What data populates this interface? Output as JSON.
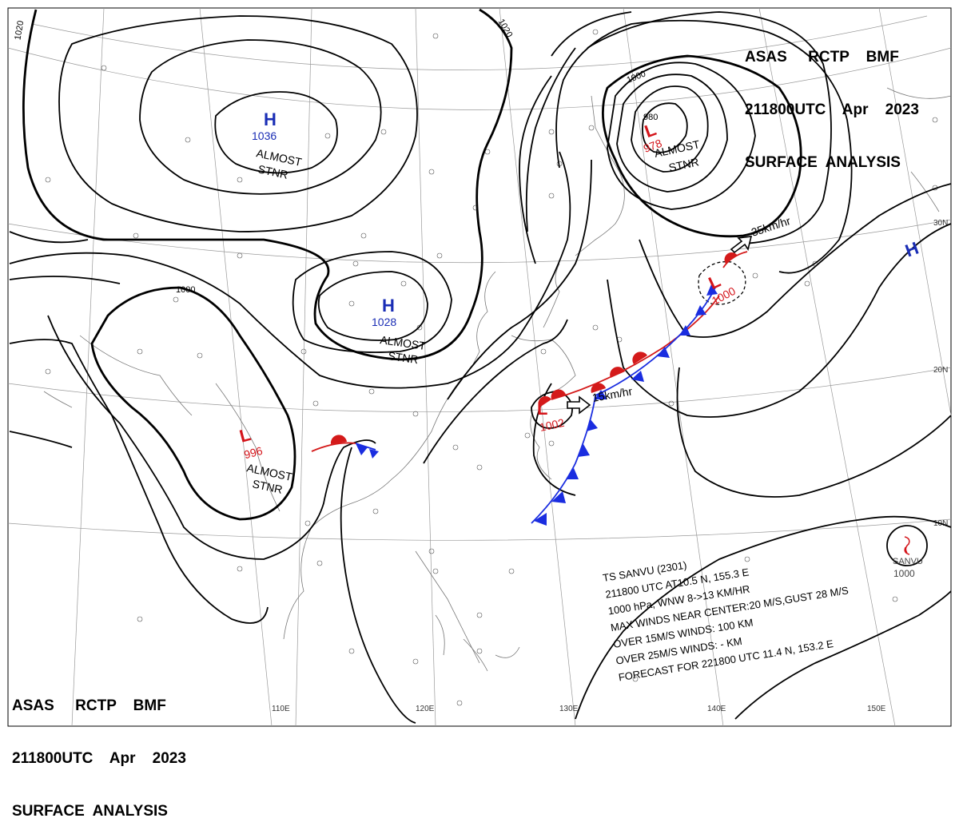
{
  "header_top": {
    "line1": "ASAS     RCTP    BMF",
    "line2": "211800UTC    Apr    2023",
    "line3": "SURFACE  ANALYSIS"
  },
  "header_bottom": {
    "line1": "ASAS     RCTP    BMF",
    "line2": "211800UTC    Apr    2023",
    "line3": "SURFACE  ANALYSIS"
  },
  "grid_labels": {
    "lon110": "110E",
    "lon120": "120E",
    "lon130": "130E",
    "lon140": "140E",
    "lon150": "150E",
    "lat30": "30N",
    "lat20": "20N",
    "lat10": "10N"
  },
  "isobar_labels": {
    "a": "1020",
    "b": "1020",
    "c": "1000",
    "d": "1000",
    "e": "980"
  },
  "systems": {
    "h1": {
      "letter": "H",
      "pressure": "1036",
      "note1": "ALMOST",
      "note2": "STNR",
      "color": "#1a2db5"
    },
    "h2": {
      "letter": "H",
      "pressure": "1028",
      "note1": "ALMOST",
      "note2": "STNR",
      "color": "#1a2db5"
    },
    "h3": {
      "letter": "H",
      "color": "#1a2db5"
    },
    "l1": {
      "letter": "L",
      "pressure": "978",
      "note1": "ALMOST",
      "note2": "STNR",
      "color": "#d4141a"
    },
    "l2": {
      "letter": "L",
      "pressure": "1000",
      "color": "#d4141a"
    },
    "l3": {
      "letter": "L",
      "pressure": "1002",
      "color": "#d4141a"
    },
    "l4": {
      "letter": "L",
      "pressure": "996",
      "note1": "ALMOST",
      "note2": "STNR",
      "color": "#d4141a"
    }
  },
  "motion": {
    "l2_speed": "35km/hr",
    "l3_speed": "15km/hr"
  },
  "typhoon": {
    "symbol_name": "SANVU",
    "symbol_pressure": "1000",
    "line1": "TS  SANVU  (2301)",
    "line2": "211800 UTC  AT10.5 N, 155.3 E",
    "line3": "1000 hPa, WNW  8->13 KM/HR",
    "line4": "MAX WINDS NEAR CENTER:20 M/S,GUST 28 M/S",
    "line5": "OVER 15M/S WINDS: 100 KM",
    "line6": "OVER 25M/S WINDS: - KM",
    "line7": "FORECAST FOR 221800 UTC 11.4 N, 153.2 E"
  },
  "colors": {
    "warm_front": "#d41a1a",
    "cold_front": "#1a2de0",
    "high": "#1a2db5",
    "low": "#d4141a"
  }
}
